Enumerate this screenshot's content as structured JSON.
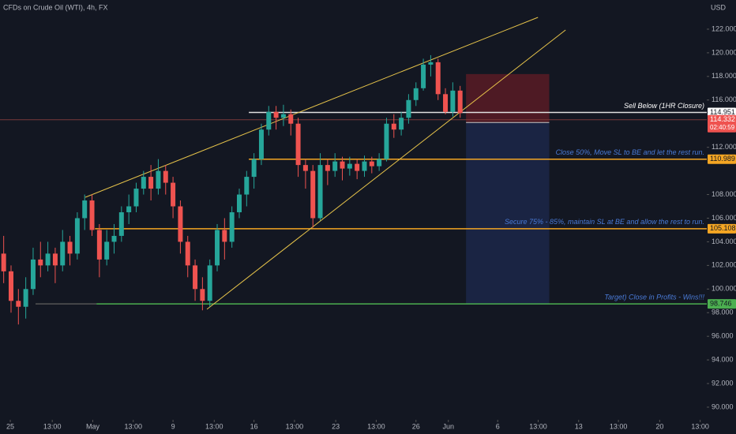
{
  "chart_data": {
    "type": "candlestick",
    "title": "CFDs on Crude Oil (WTI), 4h, FX",
    "currency": "USD",
    "up_color": "#26a69a",
    "down_color": "#ef5350",
    "xlim": [
      0,
      96
    ],
    "ylim": [
      88.93,
      124.47
    ],
    "xticks": [
      {
        "value": 1.4,
        "label": "25"
      },
      {
        "value": 7.1,
        "label": "13:00"
      },
      {
        "value": 12.6,
        "label": "May"
      },
      {
        "value": 18.1,
        "label": "13:00"
      },
      {
        "value": 23.5,
        "label": "9"
      },
      {
        "value": 29.1,
        "label": "13:00"
      },
      {
        "value": 34.5,
        "label": "16"
      },
      {
        "value": 40,
        "label": "13:00"
      },
      {
        "value": 45.6,
        "label": "23"
      },
      {
        "value": 51.1,
        "label": "13:00"
      },
      {
        "value": 56.5,
        "label": "26"
      },
      {
        "value": 60.9,
        "label": "Jun"
      },
      {
        "value": 67.6,
        "label": "6"
      },
      {
        "value": 73.1,
        "label": "13:00"
      },
      {
        "value": 78.6,
        "label": "13"
      },
      {
        "value": 84,
        "label": "13:00"
      },
      {
        "value": 89.6,
        "label": "20"
      },
      {
        "value": 95.1,
        "label": "13:00"
      }
    ],
    "yticks": [
      {
        "value": 122,
        "label": "122.000"
      },
      {
        "value": 120,
        "label": "120.000"
      },
      {
        "value": 118,
        "label": "118.000"
      },
      {
        "value": 116,
        "label": "116.000"
      },
      {
        "value": 112,
        "label": "112.000"
      },
      {
        "value": 108,
        "label": "108.000"
      },
      {
        "value": 106,
        "label": "106.000"
      },
      {
        "value": 104,
        "label": "104.000"
      },
      {
        "value": 102,
        "label": "102.000"
      },
      {
        "value": 100,
        "label": "100.000"
      },
      {
        "value": 98,
        "label": "98.000"
      },
      {
        "value": 96,
        "label": "96.000"
      },
      {
        "value": 94,
        "label": "94.000"
      },
      {
        "value": 92,
        "label": "92.000"
      },
      {
        "value": 90,
        "label": "90.000"
      }
    ],
    "candles": [
      [
        103,
        104.5,
        100.5,
        101.5
      ],
      [
        101.5,
        102,
        98,
        99
      ],
      [
        99,
        100,
        97,
        98.5
      ],
      [
        98.5,
        101,
        97.5,
        100
      ],
      [
        100,
        103.5,
        99.5,
        102.5
      ],
      [
        102.5,
        104,
        101,
        102
      ],
      [
        102,
        104,
        101.5,
        103
      ],
      [
        103,
        103.5,
        100.5,
        102
      ],
      [
        102,
        105,
        101.5,
        104
      ],
      [
        104,
        104.5,
        102,
        103
      ],
      [
        103,
        106.5,
        102.5,
        106
      ],
      [
        106,
        108,
        105,
        107.5
      ],
      [
        107.5,
        108,
        104.5,
        105
      ],
      [
        105,
        105.5,
        101,
        102.5
      ],
      [
        102.5,
        105,
        102,
        104
      ],
      [
        104,
        105.5,
        103,
        104.5
      ],
      [
        104.5,
        107,
        104,
        106.5
      ],
      [
        106.5,
        108,
        105.5,
        107
      ],
      [
        107,
        109,
        106.5,
        108.5
      ],
      [
        108.5,
        110,
        108,
        109.5
      ],
      [
        109.5,
        110.5,
        107.5,
        108.5
      ],
      [
        108.5,
        111,
        108,
        110
      ],
      [
        110,
        110.5,
        108,
        109
      ],
      [
        109,
        109.5,
        106,
        107
      ],
      [
        107,
        107.5,
        103,
        104
      ],
      [
        104,
        104.5,
        101,
        102
      ],
      [
        102,
        102.5,
        99,
        100
      ],
      [
        100,
        101,
        98.2,
        99
      ],
      [
        99,
        102.5,
        98.5,
        102
      ],
      [
        102,
        105.5,
        101.5,
        105
      ],
      [
        105,
        106,
        102.5,
        104
      ],
      [
        104,
        107,
        103.5,
        106.5
      ],
      [
        106.5,
        108.5,
        106,
        108
      ],
      [
        108,
        110,
        107,
        109.5
      ],
      [
        109.5,
        111.5,
        108.5,
        111
      ],
      [
        111,
        114,
        110.5,
        113.5
      ],
      [
        113.5,
        115.5,
        113,
        115
      ],
      [
        115,
        115.5,
        113.5,
        114.5
      ],
      [
        114.5,
        115.6,
        113.8,
        114.8
      ],
      [
        114.8,
        115.2,
        113,
        114
      ],
      [
        114,
        114.5,
        109.5,
        110.5
      ],
      [
        110.5,
        111,
        108.5,
        110
      ],
      [
        110,
        110.5,
        105.2,
        106
      ],
      [
        106,
        111.5,
        105.8,
        110.5
      ],
      [
        110.5,
        111,
        108.8,
        110
      ],
      [
        110,
        111.5,
        109.5,
        110.8
      ],
      [
        110.8,
        111.2,
        109.2,
        110.2
      ],
      [
        110.2,
        111.2,
        109.6,
        110.6
      ],
      [
        110.6,
        111,
        109.3,
        110
      ],
      [
        110,
        111.3,
        109.5,
        110.8
      ],
      [
        110.8,
        111.2,
        109.8,
        110.4
      ],
      [
        110.4,
        111.5,
        110,
        111
      ],
      [
        111,
        114.5,
        110.8,
        114
      ],
      [
        114,
        114.8,
        112.8,
        113.5
      ],
      [
        113.5,
        115,
        113,
        114.5
      ],
      [
        114.5,
        116.5,
        114,
        116
      ],
      [
        116,
        117.5,
        115.5,
        117
      ],
      [
        117,
        119.5,
        116.8,
        119
      ],
      [
        119,
        119.8,
        118,
        119.2
      ],
      [
        119.2,
        119.5,
        116,
        116.5
      ],
      [
        116.5,
        117,
        114.8,
        115
      ],
      [
        115,
        117.5,
        114.6,
        116.8
      ],
      [
        116.8,
        117.2,
        114.5,
        114.9
      ]
    ],
    "trendlines": [
      {
        "color": "#e6c34a",
        "x": [
          11.59,
          73.07
        ],
        "y": [
          107.77,
          123.0
        ]
      },
      {
        "color": "#e6c34a",
        "x": [
          28.11,
          76.82
        ],
        "y": [
          98.29,
          121.93
        ]
      }
    ],
    "levels": [
      {
        "value": 114.951,
        "text": "Sell Below (1HR Closure)",
        "color": "#e0e0e0",
        "tag_color": "#ffffff",
        "text_color": "#ffffff",
        "from": 33.8
      },
      {
        "value": 110.989,
        "text": "Close 50%, Move SL to BE and let the rest run.",
        "color": "#f5a623",
        "tag_color": "#f5a623",
        "text_color": "#4a7bd8",
        "from": 33.8
      },
      {
        "value": 105.108,
        "text": "Secure 75% - 85%, maintain SL at BE and allow the rest to run.",
        "color": "#f5a623",
        "tag_color": "#f5a623",
        "text_color": "#4a7bd8",
        "from": 12.9
      },
      {
        "value": 98.746,
        "text": "Target) Close in Profits - Wins!!!",
        "color": "#4caf50",
        "tag_color": "#4caf50",
        "text_color": "#4a7bd8",
        "from": 13.1
      }
    ],
    "position": {
      "entry": 114.1,
      "stop": 118.2,
      "target": 98.746,
      "from": 63.3,
      "to": 74.6
    },
    "current_price": {
      "value": 114.332,
      "countdown": "02:40:59",
      "color": "#ef5350"
    }
  }
}
